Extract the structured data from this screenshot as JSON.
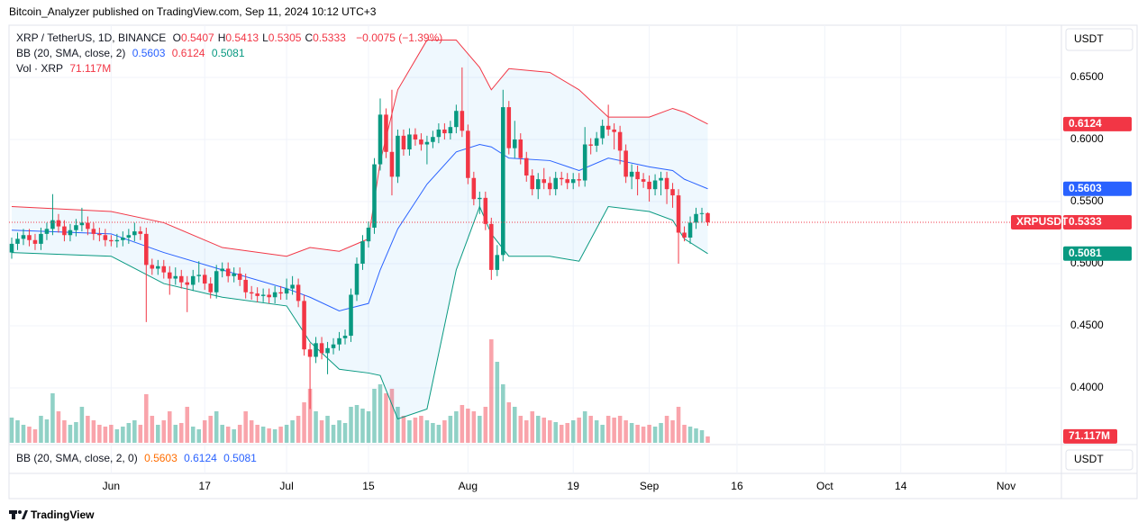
{
  "header": {
    "published": "Bitcoin_Analyzer published on TradingView.com, Sep 11, 2024 10:12 UTC+3"
  },
  "chart_data": {
    "type": "candlestick",
    "title": "XRP / TetherUS, 1D, BINANCE",
    "ohlc_keys": [
      "O",
      "H",
      "L",
      "C"
    ],
    "change_label": "−0.0075 (−1.39%)",
    "x": [
      "2024-05-15",
      "2024-05-16",
      "2024-05-17",
      "2024-05-18",
      "2024-05-19",
      "2024-05-20",
      "2024-05-21",
      "2024-05-22",
      "2024-05-23",
      "2024-05-24",
      "2024-05-25",
      "2024-05-26",
      "2024-05-27",
      "2024-05-28",
      "2024-05-29",
      "2024-05-30",
      "2024-05-31",
      "2024-06-01",
      "2024-06-02",
      "2024-06-03",
      "2024-06-04",
      "2024-06-05",
      "2024-06-06",
      "2024-06-07",
      "2024-06-08",
      "2024-06-09",
      "2024-06-10",
      "2024-06-11",
      "2024-06-12",
      "2024-06-13",
      "2024-06-14",
      "2024-06-15",
      "2024-06-16",
      "2024-06-17",
      "2024-06-18",
      "2024-06-19",
      "2024-06-20",
      "2024-06-21",
      "2024-06-22",
      "2024-06-23",
      "2024-06-24",
      "2024-06-25",
      "2024-06-26",
      "2024-06-27",
      "2024-06-28",
      "2024-06-29",
      "2024-06-30",
      "2024-07-01",
      "2024-07-02",
      "2024-07-03",
      "2024-07-04",
      "2024-07-05",
      "2024-07-06",
      "2024-07-07",
      "2024-07-08",
      "2024-07-09",
      "2024-07-10",
      "2024-07-11",
      "2024-07-12",
      "2024-07-13",
      "2024-07-14",
      "2024-07-15",
      "2024-07-16",
      "2024-07-17",
      "2024-07-18",
      "2024-07-19",
      "2024-07-20",
      "2024-07-21",
      "2024-07-22",
      "2024-07-23",
      "2024-07-24",
      "2024-07-25",
      "2024-07-26",
      "2024-07-27",
      "2024-07-28",
      "2024-07-29",
      "2024-07-30",
      "2024-07-31",
      "2024-08-01",
      "2024-08-02",
      "2024-08-03",
      "2024-08-04",
      "2024-08-05",
      "2024-08-06",
      "2024-08-07",
      "2024-08-08",
      "2024-08-09",
      "2024-08-10",
      "2024-08-11",
      "2024-08-12",
      "2024-08-13",
      "2024-08-14",
      "2024-08-15",
      "2024-08-16",
      "2024-08-17",
      "2024-08-18",
      "2024-08-19",
      "2024-08-20",
      "2024-08-21",
      "2024-08-22",
      "2024-08-23",
      "2024-08-24",
      "2024-08-25",
      "2024-08-26",
      "2024-08-27",
      "2024-08-28",
      "2024-08-29",
      "2024-08-30",
      "2024-08-31",
      "2024-09-01",
      "2024-09-02",
      "2024-09-03",
      "2024-09-04",
      "2024-09-05",
      "2024-09-06",
      "2024-09-07",
      "2024-09-08",
      "2024-09-09",
      "2024-09-10",
      "2024-09-11"
    ],
    "open": [
      0.509,
      0.516,
      0.52,
      0.523,
      0.519,
      0.516,
      0.524,
      0.528,
      0.535,
      0.53,
      0.523,
      0.527,
      0.531,
      0.533,
      0.528,
      0.524,
      0.523,
      0.519,
      0.518,
      0.519,
      0.521,
      0.523,
      0.526,
      0.524,
      0.499,
      0.496,
      0.498,
      0.493,
      0.488,
      0.49,
      0.485,
      0.483,
      0.49,
      0.491,
      0.484,
      0.477,
      0.494,
      0.496,
      0.49,
      0.492,
      0.487,
      0.477,
      0.476,
      0.474,
      0.475,
      0.473,
      0.477,
      0.476,
      0.48,
      0.483,
      0.47,
      0.431,
      0.425,
      0.436,
      0.428,
      0.432,
      0.435,
      0.44,
      0.442,
      0.475,
      0.5,
      0.518,
      0.529,
      0.58,
      0.62,
      0.59,
      0.57,
      0.603,
      0.592,
      0.604,
      0.6,
      0.596,
      0.598,
      0.602,
      0.608,
      0.605,
      0.61,
      0.623,
      0.607,
      0.569,
      0.552,
      0.553,
      0.532,
      0.495,
      0.507,
      0.626,
      0.593,
      0.6,
      0.585,
      0.571,
      0.56,
      0.568,
      0.565,
      0.56,
      0.569,
      0.568,
      0.565,
      0.568,
      0.567,
      0.596,
      0.595,
      0.601,
      0.611,
      0.608,
      0.606,
      0.591,
      0.57,
      0.574,
      0.568,
      0.566,
      0.56,
      0.567,
      0.569,
      0.56,
      0.555,
      0.525,
      0.521,
      0.533,
      0.54,
      0.5407
    ],
    "high": [
      0.521,
      0.525,
      0.528,
      0.528,
      0.524,
      0.529,
      0.533,
      0.556,
      0.54,
      0.535,
      0.532,
      0.536,
      0.545,
      0.538,
      0.533,
      0.529,
      0.528,
      0.523,
      0.524,
      0.526,
      0.528,
      0.533,
      0.53,
      0.529,
      0.504,
      0.503,
      0.503,
      0.498,
      0.497,
      0.495,
      0.49,
      0.495,
      0.502,
      0.496,
      0.489,
      0.499,
      0.501,
      0.501,
      0.497,
      0.497,
      0.492,
      0.482,
      0.481,
      0.48,
      0.48,
      0.482,
      0.482,
      0.488,
      0.49,
      0.488,
      0.475,
      0.436,
      0.441,
      0.441,
      0.437,
      0.44,
      0.445,
      0.447,
      0.48,
      0.505,
      0.523,
      0.534,
      0.585,
      0.633,
      0.625,
      0.64,
      0.608,
      0.608,
      0.609,
      0.609,
      0.605,
      0.603,
      0.607,
      0.613,
      0.613,
      0.615,
      0.628,
      0.658,
      0.612,
      0.574,
      0.558,
      0.558,
      0.537,
      0.515,
      0.64,
      0.631,
      0.615,
      0.605,
      0.59,
      0.576,
      0.573,
      0.577,
      0.57,
      0.574,
      0.574,
      0.573,
      0.573,
      0.573,
      0.61,
      0.601,
      0.606,
      0.616,
      0.628,
      0.613,
      0.611,
      0.596,
      0.58,
      0.579,
      0.573,
      0.571,
      0.572,
      0.574,
      0.574,
      0.565,
      0.56,
      0.53,
      0.538,
      0.545,
      0.545,
      0.5413
    ],
    "low": [
      0.504,
      0.511,
      0.515,
      0.514,
      0.511,
      0.511,
      0.519,
      0.523,
      0.525,
      0.518,
      0.518,
      0.522,
      0.526,
      0.523,
      0.519,
      0.518,
      0.514,
      0.514,
      0.513,
      0.514,
      0.516,
      0.518,
      0.519,
      0.453,
      0.491,
      0.491,
      0.488,
      0.475,
      0.483,
      0.48,
      0.461,
      0.478,
      0.485,
      0.479,
      0.472,
      0.472,
      0.489,
      0.485,
      0.485,
      0.482,
      0.472,
      0.471,
      0.469,
      0.469,
      0.468,
      0.468,
      0.471,
      0.471,
      0.475,
      0.465,
      0.426,
      0.383,
      0.42,
      0.423,
      0.411,
      0.427,
      0.43,
      0.435,
      0.437,
      0.47,
      0.495,
      0.513,
      0.524,
      0.575,
      0.585,
      0.555,
      0.565,
      0.587,
      0.587,
      0.595,
      0.591,
      0.58,
      0.593,
      0.597,
      0.6,
      0.6,
      0.605,
      0.602,
      0.564,
      0.547,
      0.54,
      0.527,
      0.487,
      0.49,
      0.502,
      0.588,
      0.585,
      0.58,
      0.566,
      0.555,
      0.552,
      0.56,
      0.555,
      0.555,
      0.563,
      0.56,
      0.56,
      0.562,
      0.562,
      0.588,
      0.59,
      0.596,
      0.603,
      0.592,
      0.58,
      0.565,
      0.56,
      0.555,
      0.561,
      0.55,
      0.555,
      0.555,
      0.548,
      0.545,
      0.5,
      0.518,
      0.516,
      0.528,
      0.533,
      0.5305
    ],
    "close": [
      0.516,
      0.52,
      0.523,
      0.519,
      0.516,
      0.524,
      0.528,
      0.535,
      0.53,
      0.523,
      0.527,
      0.531,
      0.533,
      0.528,
      0.524,
      0.523,
      0.519,
      0.518,
      0.519,
      0.521,
      0.523,
      0.526,
      0.524,
      0.499,
      0.496,
      0.498,
      0.493,
      0.488,
      0.49,
      0.485,
      0.483,
      0.49,
      0.491,
      0.484,
      0.477,
      0.494,
      0.496,
      0.49,
      0.492,
      0.487,
      0.477,
      0.476,
      0.474,
      0.475,
      0.473,
      0.477,
      0.476,
      0.48,
      0.483,
      0.47,
      0.431,
      0.425,
      0.436,
      0.428,
      0.432,
      0.435,
      0.44,
      0.442,
      0.475,
      0.5,
      0.518,
      0.529,
      0.58,
      0.62,
      0.59,
      0.57,
      0.603,
      0.592,
      0.604,
      0.6,
      0.596,
      0.598,
      0.602,
      0.608,
      0.605,
      0.61,
      0.623,
      0.607,
      0.569,
      0.552,
      0.553,
      0.532,
      0.495,
      0.507,
      0.626,
      0.593,
      0.6,
      0.585,
      0.571,
      0.56,
      0.568,
      0.565,
      0.56,
      0.569,
      0.568,
      0.565,
      0.568,
      0.567,
      0.596,
      0.595,
      0.601,
      0.611,
      0.608,
      0.606,
      0.591,
      0.57,
      0.574,
      0.568,
      0.566,
      0.56,
      0.567,
      0.569,
      0.56,
      0.555,
      0.525,
      0.521,
      0.533,
      0.54,
      0.5407,
      0.5333
    ],
    "up_color": "#089981",
    "down_color": "#f23645",
    "ylim": [
      0.3558,
      0.692
    ],
    "yticks": [
      {
        "value": 0.4,
        "label": "0.4000"
      },
      {
        "value": 0.45,
        "label": "0.4500"
      },
      {
        "value": 0.5,
        "label": "0.5000"
      },
      {
        "value": 0.55,
        "label": "0.5500"
      },
      {
        "value": 0.6,
        "label": "0.6000"
      },
      {
        "value": 0.65,
        "label": "0.6500"
      }
    ],
    "currency": "USDT",
    "symbol_tag": "XRPUSDT",
    "xlim": [
      "2024-05-15",
      "2024-11-10"
    ],
    "xticks": [
      {
        "value": "2024-06-01",
        "label": "Jun"
      },
      {
        "value": "2024-06-17",
        "label": "17"
      },
      {
        "value": "2024-07-01",
        "label": "Jul"
      },
      {
        "value": "2024-07-15",
        "label": "15"
      },
      {
        "value": "2024-08-01",
        "label": "Aug"
      },
      {
        "value": "2024-08-19",
        "label": "19"
      },
      {
        "value": "2024-09-01",
        "label": "Sep"
      },
      {
        "value": "2024-09-16",
        "label": "16"
      },
      {
        "value": "2024-10-01",
        "label": "Oct"
      },
      {
        "value": "2024-10-14",
        "label": "14"
      },
      {
        "value": "2024-11-01",
        "label": "Nov"
      }
    ],
    "grid": true,
    "bands": {
      "title": "BB (20, SMA, close, 2)",
      "x": [
        "2024-05-15",
        "2024-06-01",
        "2024-06-10",
        "2024-06-20",
        "2024-07-01",
        "2024-07-05",
        "2024-07-10",
        "2024-07-15",
        "2024-07-17",
        "2024-07-20",
        "2024-07-25",
        "2024-07-30",
        "2024-08-03",
        "2024-08-05",
        "2024-08-08",
        "2024-08-15",
        "2024-08-20",
        "2024-08-25",
        "2024-09-01",
        "2024-09-05",
        "2024-09-07",
        "2024-09-11"
      ],
      "middle": {
        "color": "#2962ff",
        "values": [
          0.527,
          0.524,
          0.509,
          0.495,
          0.48,
          0.473,
          0.462,
          0.468,
          0.495,
          0.528,
          0.564,
          0.59,
          0.596,
          0.594,
          0.585,
          0.583,
          0.575,
          0.585,
          0.578,
          0.575,
          0.568,
          0.5603
        ]
      },
      "upper": {
        "color": "#f23645",
        "values": [
          0.546,
          0.542,
          0.533,
          0.513,
          0.506,
          0.513,
          0.51,
          0.52,
          0.582,
          0.64,
          0.68,
          0.68,
          0.658,
          0.64,
          0.657,
          0.654,
          0.64,
          0.618,
          0.618,
          0.625,
          0.622,
          0.6124
        ]
      },
      "lower": {
        "color": "#089981",
        "values": [
          0.509,
          0.506,
          0.484,
          0.473,
          0.466,
          0.437,
          0.415,
          0.412,
          0.41,
          0.375,
          0.383,
          0.495,
          0.546,
          0.524,
          0.506,
          0.506,
          0.502,
          0.546,
          0.542,
          0.535,
          0.52,
          0.5081
        ]
      }
    },
    "volume": {
      "title": "Vol · XRP",
      "label": "71.117M",
      "values": [
        280,
        250,
        200,
        180,
        150,
        300,
        260,
        550,
        350,
        250,
        200,
        230,
        400,
        300,
        250,
        200,
        180,
        200,
        150,
        180,
        220,
        250,
        200,
        540,
        300,
        200,
        250,
        350,
        200,
        220,
        400,
        180,
        150,
        250,
        300,
        350,
        200,
        180,
        150,
        200,
        350,
        250,
        200,
        180,
        160,
        150,
        180,
        200,
        250,
        300,
        450,
        600,
        350,
        250,
        300,
        200,
        250,
        220,
        400,
        420,
        380,
        350,
        600,
        650,
        550,
        600,
        400,
        300,
        250,
        280,
        300,
        250,
        220,
        200,
        250,
        300,
        350,
        420,
        380,
        350,
        300,
        400,
        1150,
        900,
        650,
        450,
        400,
        300,
        250,
        350,
        300,
        280,
        250,
        230,
        200,
        220,
        250,
        280,
        350,
        300,
        250,
        200,
        300,
        280,
        300,
        250,
        220,
        200,
        180,
        200,
        180,
        220,
        300,
        250,
        400,
        200,
        180,
        160,
        140,
        71.117
      ]
    },
    "indicator_pane": {
      "title": "BB (20, SMA, close, 2, 0)",
      "currency": "USDT"
    }
  },
  "footer": {
    "brand": "TradingView"
  }
}
